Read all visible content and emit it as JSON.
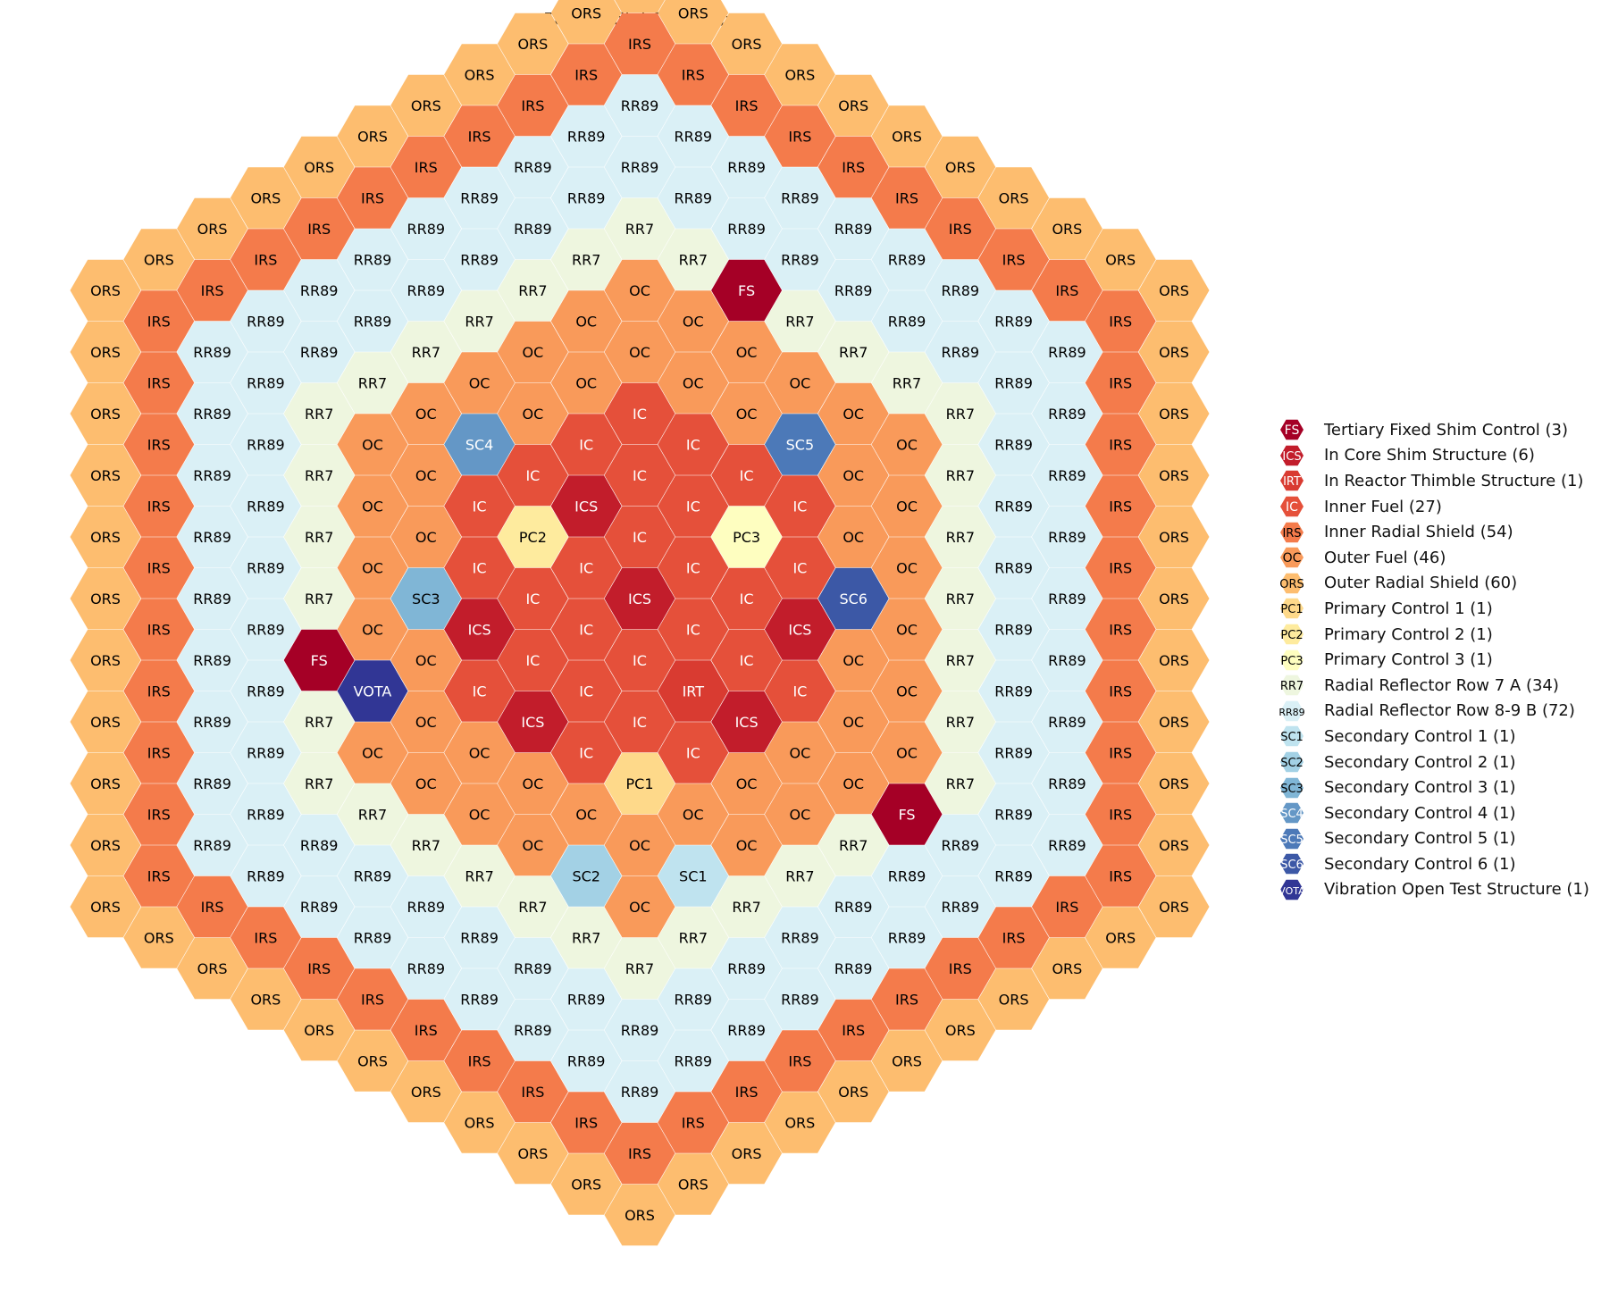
{
  "title": "FFTF Radial Core Map",
  "assembly_types": {
    "FS": {
      "label": "FS",
      "name": "Tertiary Fixed Shim Control",
      "count": 3,
      "color": "#a50026",
      "text_color": "#ffffff"
    },
    "ICS": {
      "label": "ICS",
      "name": "In Core Shim Structure",
      "count": 6,
      "color": "#c21d2b",
      "text_color": "#ffffff"
    },
    "IRT": {
      "label": "IRT",
      "name": "In Reactor Thimble Structure",
      "count": 1,
      "color": "#d93b31",
      "text_color": "#ffffff"
    },
    "IC": {
      "label": "IC",
      "name": "Inner Fuel",
      "count": 27,
      "color": "#e5503a",
      "text_color": "#ffffff"
    },
    "IRS": {
      "label": "IRS",
      "name": "Inner Radial Shield",
      "count": 54,
      "color": "#f47b4b",
      "text_color": "#000000"
    },
    "OC": {
      "label": "OC",
      "name": "Outer Fuel",
      "count": 46,
      "color": "#f99a5a",
      "text_color": "#000000"
    },
    "ORS": {
      "label": "ORS",
      "name": "Outer Radial Shield",
      "count": 60,
      "color": "#fdbd6f",
      "text_color": "#000000"
    },
    "PC1": {
      "label": "PC1",
      "name": "Primary Control 1",
      "count": 1,
      "color": "#fed98a",
      "text_color": "#000000"
    },
    "PC2": {
      "label": "PC2",
      "name": "Primary Control 2",
      "count": 1,
      "color": "#feeb9e",
      "text_color": "#000000"
    },
    "PC3": {
      "label": "PC3",
      "name": "Primary Control 3",
      "count": 1,
      "color": "#fefec0",
      "text_color": "#000000"
    },
    "RR7": {
      "label": "RR7",
      "name": "Radial Reflector Row 7 A",
      "count": 34,
      "color": "#eef6df",
      "text_color": "#000000"
    },
    "RR89": {
      "label": "RR89",
      "name": "Radial Reflector Row 8-9 B",
      "count": 72,
      "color": "#daf0f6",
      "text_color": "#000000"
    },
    "SC1": {
      "label": "SC1",
      "name": "Secondary Control 1",
      "count": 1,
      "color": "#bfe3ef",
      "text_color": "#000000"
    },
    "SC2": {
      "label": "SC2",
      "name": "Secondary Control 2",
      "count": 1,
      "color": "#a3d1e5",
      "text_color": "#000000"
    },
    "SC3": {
      "label": "SC3",
      "name": "Secondary Control 3",
      "count": 1,
      "color": "#80b6d6",
      "text_color": "#000000"
    },
    "SC4": {
      "label": "SC4",
      "name": "Secondary Control 4",
      "count": 1,
      "color": "#6497c6",
      "text_color": "#ffffff"
    },
    "SC5": {
      "label": "SC5",
      "name": "Secondary Control 5",
      "count": 1,
      "color": "#4c79b8",
      "text_color": "#ffffff"
    },
    "SC6": {
      "label": "SC6",
      "name": "Secondary Control 6",
      "count": 1,
      "color": "#3c58a6",
      "text_color": "#ffffff"
    },
    "VOTA": {
      "label": "VOTA",
      "name": "Vibration Open Test Structure",
      "count": 1,
      "color": "#313695",
      "text_color": "#ffffff"
    }
  },
  "legend": [
    {
      "type": "FS",
      "text": "Tertiary Fixed Shim Control (3)"
    },
    {
      "type": "ICS",
      "text": "In Core Shim Structure (6)"
    },
    {
      "type": "IRT",
      "text": "In Reactor Thimble Structure (1)"
    },
    {
      "type": "IC",
      "text": "Inner Fuel (27)"
    },
    {
      "type": "IRS",
      "text": "Inner Radial Shield (54)"
    },
    {
      "type": "OC",
      "text": "Outer Fuel (46)"
    },
    {
      "type": "ORS",
      "text": "Outer Radial Shield (60)"
    },
    {
      "type": "PC1",
      "text": "Primary Control 1 (1)"
    },
    {
      "type": "PC2",
      "text": "Primary Control 2 (1)"
    },
    {
      "type": "PC3",
      "text": "Primary Control 3 (1)"
    },
    {
      "type": "RR7",
      "text": "Radial Reflector Row 7 A (34)"
    },
    {
      "type": "RR89",
      "text": "Radial Reflector Row 8-9 B (72)"
    },
    {
      "type": "SC1",
      "text": "Secondary Control 1 (1)"
    },
    {
      "type": "SC2",
      "text": "Secondary Control 2 (1)"
    },
    {
      "type": "SC3",
      "text": "Secondary Control 3 (1)"
    },
    {
      "type": "SC4",
      "text": "Secondary Control 4 (1)"
    },
    {
      "type": "SC5",
      "text": "Secondary Control 5 (1)"
    },
    {
      "type": "SC6",
      "text": "Secondary Control 6 (1)"
    },
    {
      "type": "VOTA",
      "text": "Vibration Open Test Structure (1)"
    }
  ],
  "core_map": {
    "ring_types": {
      "1": "IC",
      "2": "IC",
      "3": "IC",
      "4": "IC",
      "5": "OC",
      "6": "OC",
      "7": "RR7",
      "8": "RR89",
      "9": "RR89",
      "10": "IRS",
      "11": "ORS"
    },
    "special_assemblies": [
      {
        "q": 0,
        "r": 0,
        "type": "ICS"
      },
      {
        "q": 0,
        "r": 3,
        "type": "PC1"
      },
      {
        "q": -2,
        "r": 0,
        "type": "PC2"
      },
      {
        "q": 2,
        "r": -2,
        "type": "PC3"
      },
      {
        "q": 1,
        "r": 4,
        "type": "SC1"
      },
      {
        "q": -1,
        "r": 5,
        "type": "SC2"
      },
      {
        "q": -4,
        "r": 2,
        "type": "SC3"
      },
      {
        "q": -3,
        "r": -1,
        "type": "SC4"
      },
      {
        "q": 3,
        "r": -4,
        "type": "SC5"
      },
      {
        "q": 4,
        "r": -2,
        "type": "SC6"
      },
      {
        "q": -5,
        "r": 4,
        "type": "VOTA"
      },
      {
        "q": 1,
        "r": 1,
        "type": "IRT"
      },
      {
        "q": -1,
        "r": -1,
        "type": "ICS"
      },
      {
        "q": -3,
        "r": 2,
        "type": "ICS"
      },
      {
        "q": -2,
        "r": 3,
        "type": "ICS"
      },
      {
        "q": 2,
        "r": 1,
        "type": "ICS"
      },
      {
        "q": 3,
        "r": -1,
        "type": "ICS"
      },
      {
        "q": 2,
        "r": -6,
        "type": "FS"
      },
      {
        "q": -6,
        "r": 4,
        "type": "FS"
      },
      {
        "q": 5,
        "r": 1,
        "type": "FS"
      }
    ]
  }
}
